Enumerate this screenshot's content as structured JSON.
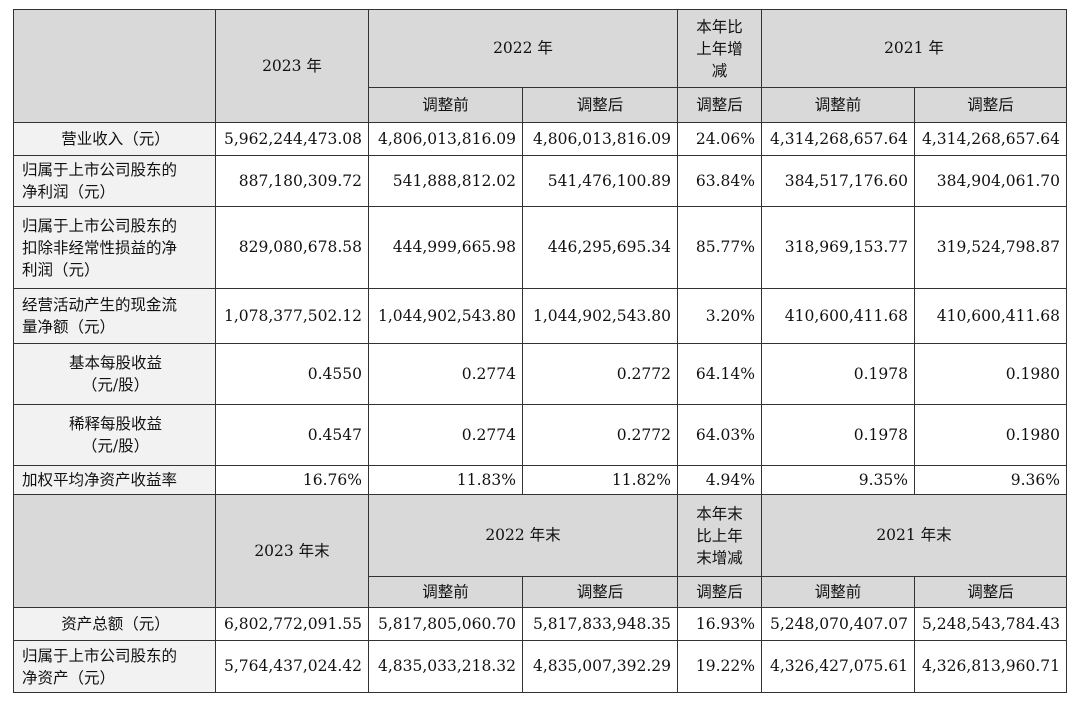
{
  "header1": {
    "y2023": "2023 年",
    "y2022": "2022 年",
    "change_lines": [
      "本年比",
      "上年增",
      "减"
    ],
    "y2021": "2021 年",
    "sub": [
      "调整前",
      "调整后",
      "调整后",
      "调整前",
      "调整后"
    ]
  },
  "rows1": [
    {
      "label_lines": [
        "营业收入（元）"
      ],
      "align": "center",
      "values": [
        "5,962,244,473.08",
        "4,806,013,816.09",
        "4,806,013,816.09",
        "24.06%",
        "4,314,268,657.64",
        "4,314,268,657.64"
      ]
    },
    {
      "label_lines": [
        "归属于上市公司股东的",
        "净利润（元）"
      ],
      "align": "left",
      "values": [
        "887,180,309.72",
        "541,888,812.02",
        "541,476,100.89",
        "63.84%",
        "384,517,176.60",
        "384,904,061.70"
      ]
    },
    {
      "label_lines": [
        "归属于上市公司股东的",
        "扣除非经常性损益的净",
        "利润（元）"
      ],
      "align": "left",
      "values": [
        "829,080,678.58",
        "444,999,665.98",
        "446,295,695.34",
        "85.77%",
        "318,969,153.77",
        "319,524,798.87"
      ]
    },
    {
      "label_lines": [
        "经营活动产生的现金流",
        "量净额（元）"
      ],
      "align": "left",
      "values": [
        "1,078,377,502.12",
        "1,044,902,543.80",
        "1,044,902,543.80",
        "3.20%",
        "410,600,411.68",
        "410,600,411.68"
      ]
    },
    {
      "label_lines": [
        "基本每股收益",
        "（元/股）"
      ],
      "align": "center",
      "values": [
        "0.4550",
        "0.2774",
        "0.2772",
        "64.14%",
        "0.1978",
        "0.1980"
      ]
    },
    {
      "label_lines": [
        "稀释每股收益",
        "（元/股）"
      ],
      "align": "center",
      "values": [
        "0.4547",
        "0.2774",
        "0.2772",
        "64.03%",
        "0.1978",
        "0.1980"
      ]
    },
    {
      "label_lines": [
        "加权平均净资产收益率"
      ],
      "align": "left",
      "values": [
        "16.76%",
        "11.83%",
        "11.82%",
        "4.94%",
        "9.35%",
        "9.36%"
      ]
    }
  ],
  "header2": {
    "y2023": "2023 年末",
    "y2022": "2022 年末",
    "change_lines": [
      "本年末",
      "比上年",
      "末增减"
    ],
    "y2021": "2021 年末",
    "sub": [
      "调整前",
      "调整后",
      "调整后",
      "调整前",
      "调整后"
    ]
  },
  "rows2": [
    {
      "label_lines": [
        "资产总额（元）"
      ],
      "align": "center",
      "values": [
        "6,802,772,091.55",
        "5,817,805,060.70",
        "5,817,833,948.35",
        "16.93%",
        "5,248,070,407.07",
        "5,248,543,784.43"
      ]
    },
    {
      "label_lines": [
        "归属于上市公司股东的",
        "净资产（元）"
      ],
      "align": "left",
      "values": [
        "5,764,437,024.42",
        "4,835,033,218.32",
        "4,835,007,392.29",
        "19.22%",
        "4,326,427,075.61",
        "4,326,813,960.71"
      ]
    }
  ]
}
